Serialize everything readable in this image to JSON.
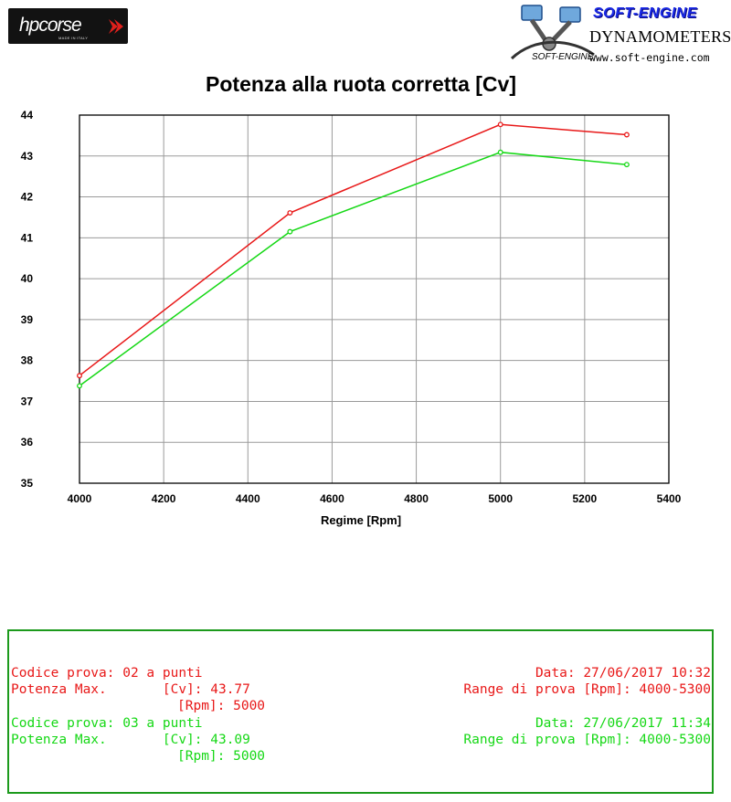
{
  "header": {
    "left_logo": {
      "text": "hpcorse",
      "subtext": "MADE IN ITALY"
    },
    "right_logo": {
      "brand": "SOFT-ENGINE",
      "line": "DYNAMOMETERS",
      "mark_text": "SOFT-ENGINE",
      "url": "www.soft-engine.com"
    }
  },
  "chart_data": {
    "type": "line",
    "title": "Potenza alla ruota corretta [Cv]",
    "xlabel": "Regime [Rpm]",
    "ylabel": "",
    "xlim": [
      4000,
      5400
    ],
    "ylim": [
      35,
      44
    ],
    "x_ticks": [
      4000,
      4200,
      4400,
      4600,
      4800,
      5000,
      5200,
      5400
    ],
    "y_ticks": [
      35,
      36,
      37,
      38,
      39,
      40,
      41,
      42,
      43,
      44
    ],
    "grid": true,
    "x": [
      4000,
      4500,
      5000,
      5300
    ],
    "series": [
      {
        "color": "#e81818",
        "values": [
          37.63,
          41.61,
          43.77,
          43.52
        ]
      },
      {
        "color": "#16d816",
        "values": [
          37.38,
          41.15,
          43.09,
          42.79
        ]
      }
    ]
  },
  "tests": [
    {
      "color": "#e81818",
      "code_line": "Codice prova: 02 a punti",
      "power_line": "Potenza Max.       [Cv]: 43.77",
      "rpm_line": "[Rpm]: 5000",
      "date_line": "Data: 27/06/2017 10:32",
      "range_line": "Range di prova [Rpm]: 4000-5300"
    },
    {
      "color": "#16d816",
      "code_line": "Codice prova: 03 a punti",
      "power_line": "Potenza Max.       [Cv]: 43.09",
      "rpm_line": "[Rpm]: 5000",
      "date_line": "Data: 27/06/2017 11:34",
      "range_line": "Range di prova [Rpm]: 4000-5300"
    }
  ]
}
